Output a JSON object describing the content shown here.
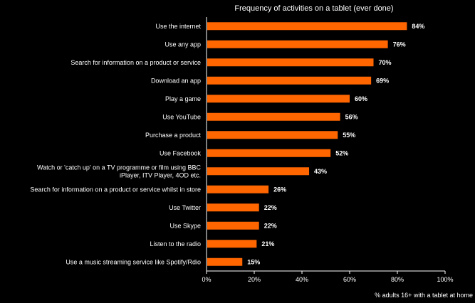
{
  "chart_data": {
    "type": "bar",
    "orientation": "horizontal",
    "title": "Frequency of activities on a  tablet (ever done)",
    "xlabel": "% adults 16+ with a tablet at home",
    "ylabel": "",
    "xlim": [
      0,
      100
    ],
    "x_ticks": [
      "0%",
      "20%",
      "40%",
      "60%",
      "80%",
      "100%"
    ],
    "grid": false,
    "legend": "none",
    "bar_color": "#FF6600",
    "categories": [
      [
        "Use the internet"
      ],
      [
        "Use any app"
      ],
      [
        "Search for information on a product or service"
      ],
      [
        "Download an app"
      ],
      [
        "Play a game"
      ],
      [
        "Use YouTube"
      ],
      [
        "Purchase a product"
      ],
      [
        "Use Facebook"
      ],
      [
        "Watch or 'catch up' on a TV programme or film using BBC",
        "iPlayer, ITV Player, 4OD etc."
      ],
      [
        "Search for information on a product or service whilst in store"
      ],
      [
        "Use Twitter"
      ],
      [
        "Use Skype"
      ],
      [
        "Listen to the radio"
      ],
      [
        "Use a music streaming service like Spotify/Rdio"
      ]
    ],
    "values": [
      84,
      76,
      70,
      69,
      60,
      56,
      55,
      52,
      43,
      26,
      22,
      22,
      21,
      15
    ],
    "value_labels": [
      "84%",
      "76%",
      "70%",
      "69%",
      "60%",
      "56%",
      "55%",
      "52%",
      "43%",
      "26%",
      "22%",
      "22%",
      "21%",
      "15%"
    ]
  }
}
